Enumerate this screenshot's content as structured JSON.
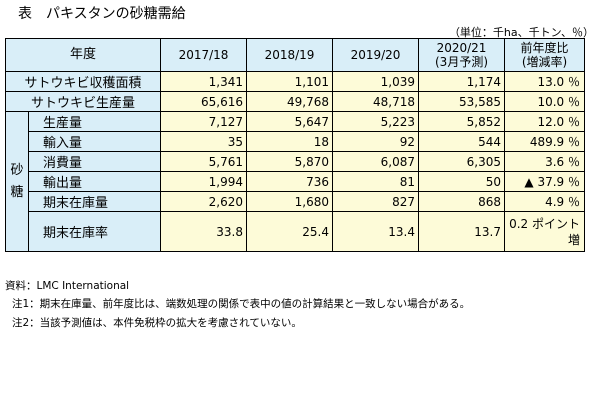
{
  "title": "表　パキスタンの砂糖需給",
  "unit_note": "（単位：千ha、千トン、％）",
  "header": {
    "year_label": "年度",
    "years": [
      "2017/18",
      "2018/19",
      "2019/20"
    ],
    "forecast_line1": "2020/21",
    "forecast_line2": "(3月予測)",
    "change_line1": "前年度比",
    "change_line2": "(増減率)"
  },
  "rows": [
    {
      "label": "サトウキビ収穫面積",
      "values": [
        "1,341",
        "1,101",
        "1,039",
        "1,174"
      ],
      "change": "13.0 ％"
    },
    {
      "label": "サトウキビ生産量",
      "values": [
        "65,616",
        "49,768",
        "48,718",
        "53,585"
      ],
      "change": "10.0 ％"
    }
  ],
  "sugar_group_label": "砂糖",
  "sugar_rows": [
    {
      "label": "生産量",
      "values": [
        "7,127",
        "5,647",
        "5,223",
        "5,852"
      ],
      "change": "12.0 ％"
    },
    {
      "label": "輸入量",
      "values": [
        "35",
        "18",
        "92",
        "544"
      ],
      "change": "489.9 ％"
    },
    {
      "label": "消費量",
      "values": [
        "5,761",
        "5,870",
        "6,087",
        "6,305"
      ],
      "change": "3.6 ％"
    },
    {
      "label": "輸出量",
      "values": [
        "1,994",
        "736",
        "81",
        "50"
      ],
      "change": "▲ 37.9 ％"
    },
    {
      "label": "期末在庫量",
      "values": [
        "2,620",
        "1,680",
        "827",
        "868"
      ],
      "change": "4.9 ％"
    },
    {
      "label": "期末在庫率",
      "values": [
        "33.8",
        "25.4",
        "13.4",
        "13.7"
      ],
      "change_line1": "0.2 ポイント",
      "change_line2": "増"
    }
  ],
  "notes": {
    "source": "資料：LMC International",
    "note1": "注1：期末在庫量、前年度比は、端数処理の関係で表中の値の計算結果と一致しない場合がある。",
    "note2": "注2：当該予測値は、本件免税枠の拡大を考慮されていない。"
  }
}
